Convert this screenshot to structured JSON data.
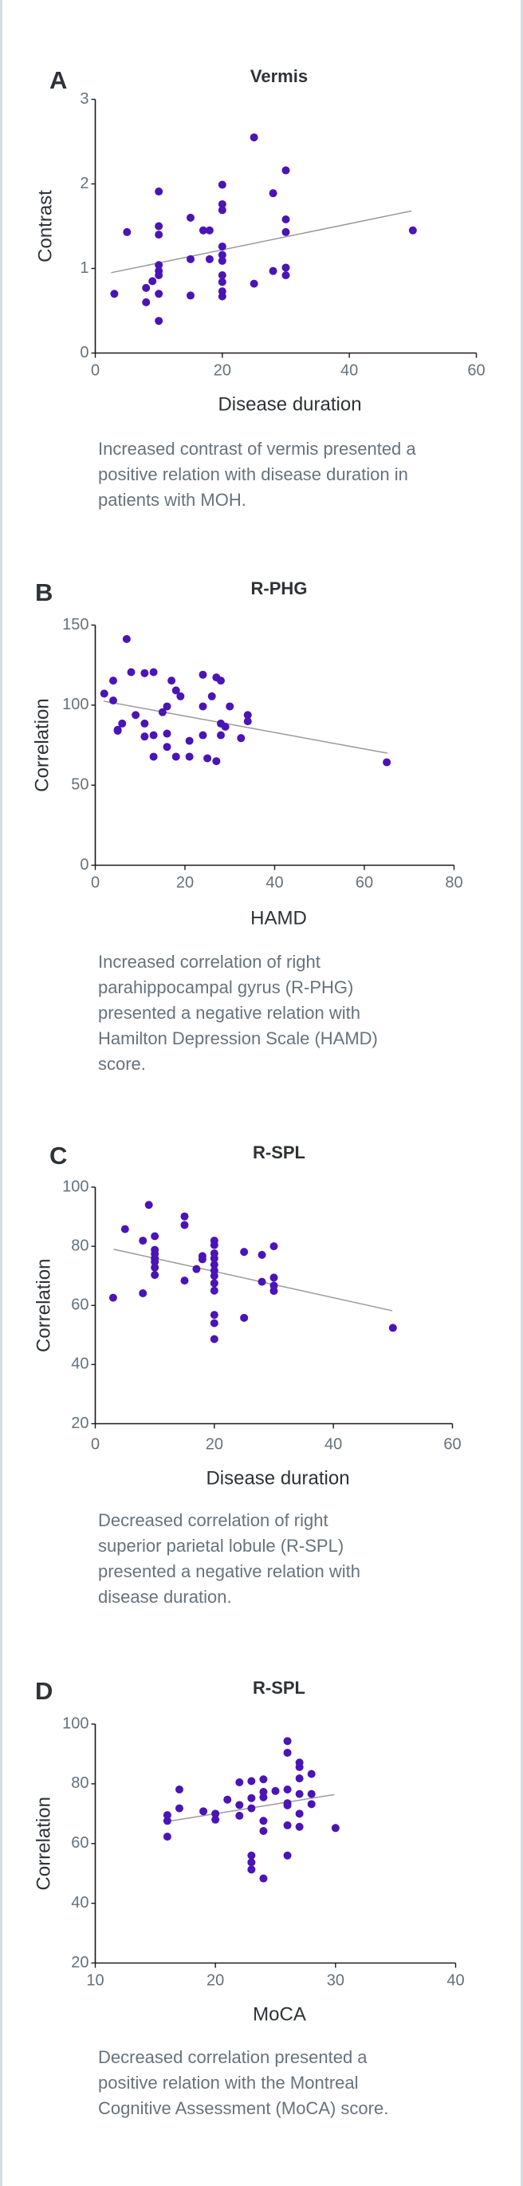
{
  "colors": {
    "point": "#4a14b6",
    "trendline": "#9a9a9a",
    "axis": "#1a1a1a"
  },
  "chart_data": [
    {
      "type": "scatter",
      "panel": "A",
      "title": "Vermis",
      "xlabel": "Disease duration",
      "ylabel": "Contrast",
      "xlim": [
        0,
        60
      ],
      "ylim": [
        0,
        3
      ],
      "xticks": [
        0,
        20,
        40,
        60
      ],
      "yticks": [
        0,
        1,
        2,
        3
      ],
      "grid": false,
      "x": [
        3,
        5,
        8,
        8,
        9,
        10,
        10,
        10,
        10,
        10,
        10,
        10,
        10,
        15,
        15,
        15,
        17,
        18,
        18,
        20,
        20,
        20,
        20,
        20,
        20,
        20,
        20,
        20,
        20,
        25,
        25,
        28,
        28,
        30,
        30,
        30,
        30,
        30,
        50
      ],
      "y": [
        0.7,
        1.43,
        0.77,
        0.6,
        0.85,
        1.91,
        1.5,
        1.4,
        1.04,
        0.97,
        0.92,
        0.7,
        0.38,
        1.6,
        1.11,
        0.68,
        1.45,
        1.45,
        1.11,
        1.99,
        1.76,
        1.69,
        1.26,
        1.16,
        1.09,
        0.92,
        0.84,
        0.73,
        0.67,
        2.55,
        0.82,
        1.89,
        0.97,
        2.16,
        1.58,
        1.43,
        1.01,
        0.92,
        1.45
      ],
      "trendline": {
        "x": [
          2.5,
          49.8
        ],
        "y": [
          0.95,
          1.68
        ]
      },
      "caption": [
        "Increased contrast of vermis presented a",
        "positive relation with disease duration in",
        "patients with MOH."
      ]
    },
    {
      "type": "scatter",
      "panel": "B",
      "title": "R-PHG",
      "xlabel": "HAMD",
      "ylabel": "Correlation",
      "xlim": [
        0,
        80
      ],
      "ylim": [
        0,
        150
      ],
      "xticks": [
        0,
        20,
        40,
        60,
        80
      ],
      "yticks": [
        0,
        50,
        100,
        150
      ],
      "grid": false,
      "x": [
        2,
        4,
        4,
        5,
        5,
        6,
        7,
        8,
        9,
        11,
        11,
        11,
        13,
        13,
        13,
        15,
        16,
        16,
        16,
        17,
        18,
        18,
        19,
        21,
        21,
        24,
        24,
        24,
        25,
        26,
        27,
        28,
        28,
        28,
        27,
        29,
        30,
        32.5,
        34,
        34,
        65
      ],
      "y": [
        107.2,
        102.9,
        115.3,
        84.6,
        84,
        88.5,
        141.3,
        120.6,
        93.8,
        88.5,
        80.4,
        120,
        120.6,
        81.2,
        67.8,
        95.6,
        99.2,
        82.2,
        73.9,
        115.3,
        109.2,
        67.8,
        105.5,
        77.7,
        67.8,
        119,
        99.2,
        81.2,
        66.8,
        105.5,
        117.3,
        115.3,
        88.5,
        81.2,
        65,
        86.5,
        99.2,
        79.4,
        93.8,
        89.9,
        64.3
      ],
      "trendline": {
        "x": [
          1.9,
          65.1
        ],
        "y": [
          102.5,
          70
        ]
      },
      "caption": [
        "Increased correlation of right",
        "parahippocampal gyrus (R-PHG)",
        "presented a negative relation with",
        "Hamilton Depression Scale (HAMD)",
        "score."
      ]
    },
    {
      "type": "scatter",
      "panel": "C",
      "title": "R-SPL",
      "xlabel": "Disease duration",
      "ylabel": "Correlation",
      "xlim": [
        0,
        60
      ],
      "ylim": [
        20,
        100
      ],
      "xticks": [
        0,
        20,
        40,
        60
      ],
      "yticks": [
        20,
        40,
        60,
        80,
        100
      ],
      "grid": false,
      "x": [
        3,
        5,
        8,
        8,
        9,
        10,
        10,
        10,
        10,
        10,
        10,
        10,
        15,
        15,
        15,
        17,
        18,
        18,
        20,
        20,
        20,
        20,
        20,
        20,
        20,
        20,
        20,
        20,
        20,
        20,
        25,
        25,
        28,
        28,
        30,
        30,
        30,
        30,
        50
      ],
      "y": [
        62.6,
        85.8,
        81.9,
        64.1,
        94,
        83.4,
        78.8,
        77.4,
        75.9,
        74.7,
        72.8,
        70.3,
        90.1,
        87.2,
        68.4,
        72.3,
        76.7,
        75.6,
        81.9,
        80.4,
        77.6,
        75.9,
        73.8,
        71.8,
        70,
        67.5,
        65,
        56.8,
        54,
        48.6,
        78.1,
        55.8,
        77.1,
        68,
        80,
        69.4,
        66.7,
        64.9,
        52.4
      ],
      "trendline": {
        "x": [
          3.1,
          49.9
        ],
        "y": [
          79,
          58.2
        ]
      },
      "caption": [
        "Decreased correlation of right",
        "superior parietal lobule (R-SPL)",
        "presented a negative relation with",
        "disease duration."
      ]
    },
    {
      "type": "scatter",
      "panel": "D",
      "title": "R-SPL",
      "xlabel": "MoCA",
      "ylabel": "Correlation",
      "xlim": [
        10,
        40
      ],
      "ylim": [
        20,
        100
      ],
      "xticks": [
        10,
        20,
        30,
        40
      ],
      "yticks": [
        20,
        40,
        60,
        80,
        100
      ],
      "grid": false,
      "x": [
        16,
        16,
        16,
        17,
        17,
        19,
        20,
        20,
        21,
        22,
        22,
        22,
        23,
        23,
        23,
        23,
        23,
        23,
        24,
        24,
        24,
        24,
        24,
        24,
        25,
        26,
        26,
        26,
        26,
        26,
        26,
        26,
        27,
        27,
        27,
        27,
        27,
        27,
        28,
        28,
        28,
        30
      ],
      "y": [
        69.5,
        67.6,
        62.3,
        78.1,
        71.8,
        70.8,
        70,
        68,
        74.7,
        80.5,
        72.9,
        69.3,
        80.9,
        75.2,
        71.8,
        56,
        53.7,
        51.3,
        81.5,
        77.3,
        75.5,
        67.6,
        64.2,
        48.3,
        77.6,
        94.3,
        90.4,
        78.1,
        73.5,
        72.8,
        66.1,
        56,
        87.1,
        85.6,
        81.8,
        76.6,
        70,
        65.6,
        83.3,
        76.6,
        73.2,
        65.2
      ],
      "trendline": {
        "x": [
          16.2,
          29.9
        ],
        "y": [
          67.5,
          76.4
        ]
      },
      "caption": [
        "Decreased correlation presented a",
        "positive relation with the Montreal",
        "Cognitive Assessment (MoCA) score."
      ]
    }
  ]
}
